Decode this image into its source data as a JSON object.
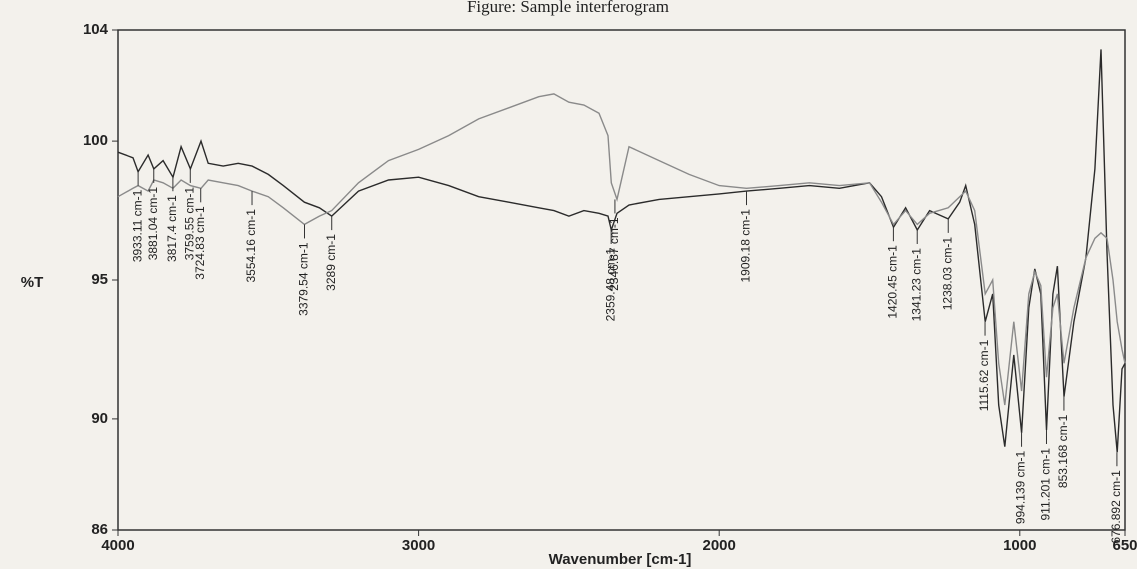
{
  "chart_data": {
    "type": "line",
    "title": "Figure: Sample interferogram",
    "x_label": "Wavenumber [cm-1]",
    "y_label": "%T",
    "x": [
      4000,
      3950,
      3933,
      3900,
      3881,
      3850,
      3817,
      3790,
      3759,
      3724,
      3700,
      3650,
      3600,
      3554,
      3500,
      3450,
      3380,
      3330,
      3289,
      3200,
      3100,
      3000,
      2900,
      2800,
      2700,
      2600,
      2550,
      2500,
      2450,
      2400,
      2370,
      2359,
      2340,
      2300,
      2200,
      2100,
      2000,
      1909,
      1800,
      1700,
      1600,
      1500,
      1460,
      1420,
      1380,
      1341,
      1300,
      1238,
      1200,
      1180,
      1150,
      1115,
      1090,
      1070,
      1050,
      1020,
      994,
      970,
      950,
      930,
      911,
      890,
      875,
      853,
      820,
      780,
      750,
      730,
      710,
      690,
      676,
      660,
      650
    ],
    "series": [
      {
        "color": "#2b2b2b",
        "values": [
          99.6,
          99.4,
          98.9,
          99.5,
          99.0,
          99.3,
          98.7,
          99.8,
          99.0,
          100.0,
          99.2,
          99.1,
          99.2,
          99.1,
          98.8,
          98.4,
          97.8,
          97.6,
          97.3,
          98.2,
          98.6,
          98.7,
          98.4,
          98.0,
          97.8,
          97.6,
          97.5,
          97.3,
          97.5,
          97.4,
          97.3,
          96.8,
          97.4,
          97.7,
          97.9,
          98.0,
          98.1,
          98.2,
          98.3,
          98.4,
          98.3,
          98.5,
          98.0,
          96.9,
          97.6,
          96.8,
          97.5,
          97.2,
          97.8,
          98.4,
          97.0,
          93.5,
          94.5,
          90.5,
          89.0,
          92.3,
          89.5,
          94.0,
          95.4,
          94.5,
          89.6,
          94.5,
          95.5,
          90.8,
          93.5,
          95.8,
          99.0,
          103.3,
          96.0,
          90.5,
          88.8,
          91.8,
          92.0
        ]
      },
      {
        "color": "#8a8a8a",
        "values": [
          98.0,
          98.3,
          98.4,
          98.2,
          98.6,
          98.5,
          98.3,
          98.6,
          98.4,
          98.3,
          98.6,
          98.5,
          98.4,
          98.2,
          98.0,
          97.6,
          97.0,
          97.3,
          97.5,
          98.5,
          99.3,
          99.7,
          100.2,
          100.8,
          101.2,
          101.6,
          101.7,
          101.4,
          101.3,
          101.0,
          100.2,
          98.5,
          97.9,
          99.8,
          99.3,
          98.8,
          98.4,
          98.3,
          98.4,
          98.5,
          98.4,
          98.5,
          97.8,
          97.0,
          97.5,
          97.0,
          97.4,
          97.6,
          98.0,
          98.2,
          97.5,
          94.5,
          95.0,
          92.0,
          90.5,
          93.5,
          91.0,
          94.5,
          95.3,
          94.8,
          91.5,
          94.0,
          94.5,
          92.0,
          94.0,
          95.8,
          96.5,
          96.7,
          96.5,
          95.0,
          93.5,
          92.5,
          92.0
        ]
      }
    ],
    "xlim": [
      4000,
      650
    ],
    "xticks": [
      4000,
      3000,
      2000,
      1000,
      650
    ],
    "ylim": [
      86,
      104
    ],
    "yticks": [
      86,
      90,
      95,
      100,
      104
    ],
    "annotations": [
      {
        "x": 3933.11,
        "y": 98.9,
        "label": "3933.11 cm-1"
      },
      {
        "x": 3881.04,
        "y": 99.0,
        "label": "3881.04 cm-1"
      },
      {
        "x": 3817.4,
        "y": 98.7,
        "label": "3817.4 cm-1"
      },
      {
        "x": 3759.55,
        "y": 99.0,
        "label": "3759.55 cm-1"
      },
      {
        "x": 3724.83,
        "y": 98.3,
        "label": "3724.83 cm-1"
      },
      {
        "x": 3554.16,
        "y": 98.2,
        "label": "3554.16 cm-1"
      },
      {
        "x": 3379.54,
        "y": 97.0,
        "label": "3379.54 cm-1"
      },
      {
        "x": 3289,
        "y": 97.3,
        "label": "3289 cm-1"
      },
      {
        "x": 2359.48,
        "y": 96.8,
        "label": "2359.48 cm-1"
      },
      {
        "x": 2346.87,
        "y": 97.9,
        "label": "2346.87 cm-1"
      },
      {
        "x": 1909.18,
        "y": 98.2,
        "label": "1909.18 cm-1"
      },
      {
        "x": 1420.45,
        "y": 96.9,
        "label": "1420.45 cm-1"
      },
      {
        "x": 1341.23,
        "y": 96.8,
        "label": "1341.23 cm-1"
      },
      {
        "x": 1238.03,
        "y": 97.2,
        "label": "1238.03 cm-1"
      },
      {
        "x": 1115.62,
        "y": 93.5,
        "label": "1115.62 cm-1"
      },
      {
        "x": 994.139,
        "y": 89.5,
        "label": "994.139 cm-1"
      },
      {
        "x": 911.201,
        "y": 89.6,
        "label": "911.201 cm-1"
      },
      {
        "x": 853.168,
        "y": 90.8,
        "label": "853.168 cm-1"
      },
      {
        "x": 676.892,
        "y": 88.8,
        "label": "676.892 cm-1"
      }
    ]
  }
}
